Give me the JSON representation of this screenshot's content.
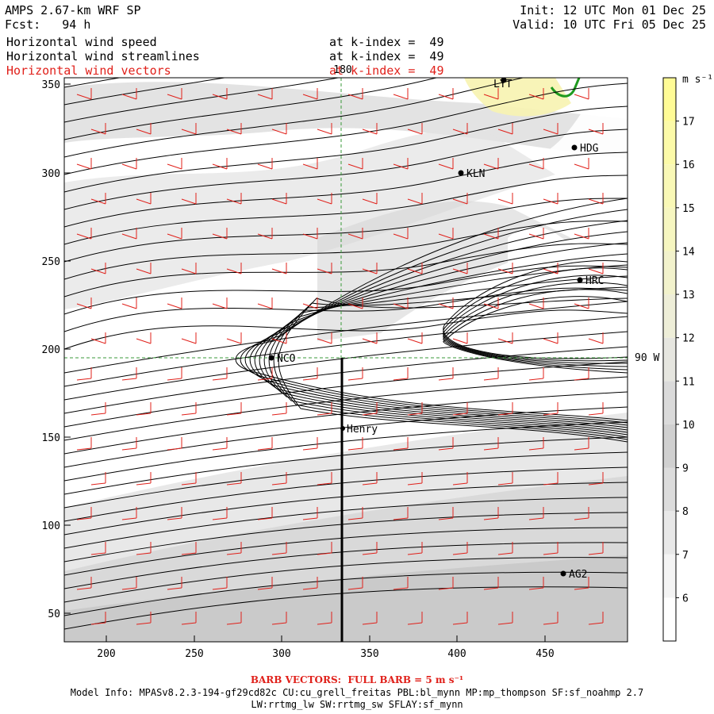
{
  "header": {
    "model": "AMPS 2.67-km WRF SP",
    "fcst": "Fcst:   94 h",
    "init": "Init: 12 UTC Mon 01 Dec 25",
    "valid": "Valid: 10 UTC Fri 05 Dec 25",
    "fields": [
      {
        "name": "Horizontal wind speed",
        "level": "at k-index =  49",
        "color": "#000000"
      },
      {
        "name": "Horizontal wind streamlines",
        "level": "at k-index =  49",
        "color": "#000000"
      },
      {
        "name": "Horizontal wind vectors",
        "level": "at k-index =  49",
        "color": "#e0201a"
      }
    ]
  },
  "map": {
    "x_ticks": [
      "200",
      "250",
      "300",
      "350",
      "400",
      "450"
    ],
    "y_ticks": [
      "350",
      "300",
      "250",
      "200",
      "150",
      "100",
      "50"
    ],
    "meridian_label": "180",
    "parallel_label": "90 W",
    "stations": [
      {
        "id": "LYT",
        "label": "LYT"
      },
      {
        "id": "HDG",
        "label": "HDG"
      },
      {
        "id": "KLN",
        "label": "KLN"
      },
      {
        "id": "HRC",
        "label": "HRC"
      },
      {
        "id": "NCO",
        "label": "NCO"
      },
      {
        "id": "Henry",
        "label": "Henry"
      },
      {
        "id": "AG2",
        "label": "AG2"
      }
    ]
  },
  "colorbar": {
    "unit": "m s⁻¹",
    "levels": [
      "6",
      "7",
      "8",
      "9",
      "10",
      "11",
      "12",
      "13",
      "14",
      "15",
      "16",
      "17"
    ],
    "colors": {
      "low": "#ffffff",
      "mid": "#c8c8c8",
      "high": "#fffbb0",
      "accent_red": "#e0201a",
      "coast_green": "#1f9a1f"
    }
  },
  "footer": {
    "barb_note": "BARB VECTORS:  FULL BARB = 5 m s⁻¹",
    "model_info_1": "Model Info: MPASv8.2.3-194-gf29cd82c CU:cu_grell_freitas PBL:bl_mynn MP:mp_thompson SF:sf_noahmp 2.7",
    "model_info_2": "LW:rrtmg_lw SW:rrtmg_sw SFLAY:sf_mynn"
  }
}
